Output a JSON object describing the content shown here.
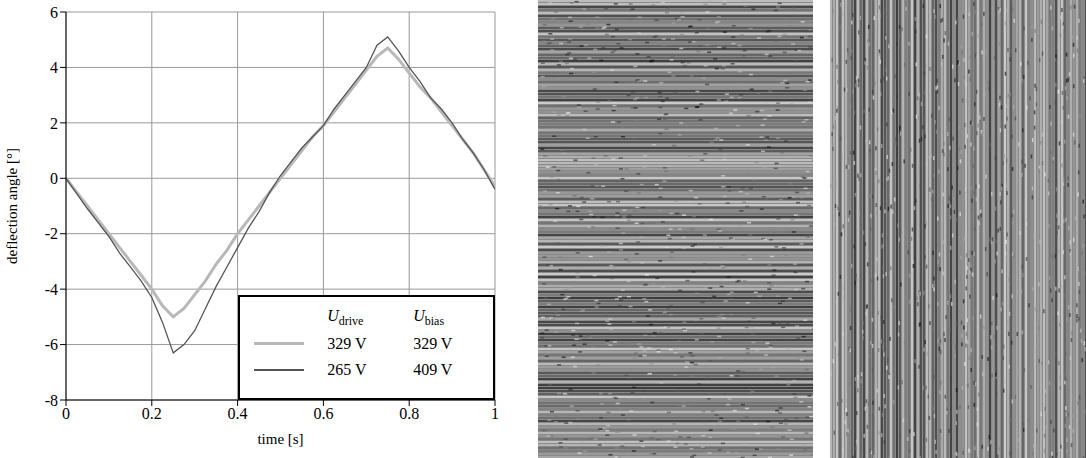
{
  "chart_data": {
    "type": "line",
    "x_label": "time [s]",
    "y_label": "deflection angle [°]",
    "xlim": [
      0,
      1
    ],
    "xticks": [
      0,
      0.2,
      0.4,
      0.6,
      0.8,
      1
    ],
    "ylim": [
      -8,
      6
    ],
    "yticks": [
      -8,
      -6,
      -4,
      -2,
      0,
      2,
      4,
      6
    ],
    "grid": true,
    "legend": "bottom right",
    "legend_columns": [
      {
        "text": "U",
        "sub": "drive"
      },
      {
        "text": "U",
        "sub": "bias"
      }
    ],
    "x": [
      0,
      0.025,
      0.05,
      0.075,
      0.1,
      0.125,
      0.15,
      0.175,
      0.2,
      0.225,
      0.25,
      0.275,
      0.3,
      0.325,
      0.35,
      0.375,
      0.4,
      0.425,
      0.45,
      0.475,
      0.5,
      0.525,
      0.55,
      0.575,
      0.6,
      0.625,
      0.65,
      0.675,
      0.7,
      0.725,
      0.75,
      0.775,
      0.8,
      0.825,
      0.85,
      0.875,
      0.9,
      0.925,
      0.95,
      0.975,
      1
    ],
    "series": [
      {
        "drive": "329 V",
        "bias": "329 V",
        "color": "#b8b8b8",
        "values": [
          0,
          -0.5,
          -1.0,
          -1.5,
          -2.0,
          -2.5,
          -3.0,
          -3.5,
          -4.0,
          -4.6,
          -5.0,
          -4.7,
          -4.2,
          -3.7,
          -3.1,
          -2.6,
          -2.0,
          -1.5,
          -1.0,
          -0.5,
          0.0,
          0.5,
          1.0,
          1.5,
          1.9,
          2.4,
          2.9,
          3.4,
          3.9,
          4.4,
          4.7,
          4.3,
          3.8,
          3.3,
          2.9,
          2.4,
          1.9,
          1.4,
          0.9,
          0.3,
          -0.3
        ]
      },
      {
        "drive": "265 V",
        "bias": "409 V",
        "color": "#555555",
        "values": [
          0,
          -0.55,
          -1.1,
          -1.6,
          -2.1,
          -2.7,
          -3.2,
          -3.7,
          -4.3,
          -5.2,
          -6.3,
          -6.0,
          -5.5,
          -4.7,
          -3.9,
          -3.2,
          -2.5,
          -1.8,
          -1.2,
          -0.5,
          0.1,
          0.6,
          1.1,
          1.5,
          1.9,
          2.5,
          3.0,
          3.5,
          4.0,
          4.8,
          5.1,
          4.6,
          4.0,
          3.5,
          2.9,
          2.5,
          2.0,
          1.4,
          0.9,
          0.3,
          -0.4
        ]
      }
    ]
  }
}
